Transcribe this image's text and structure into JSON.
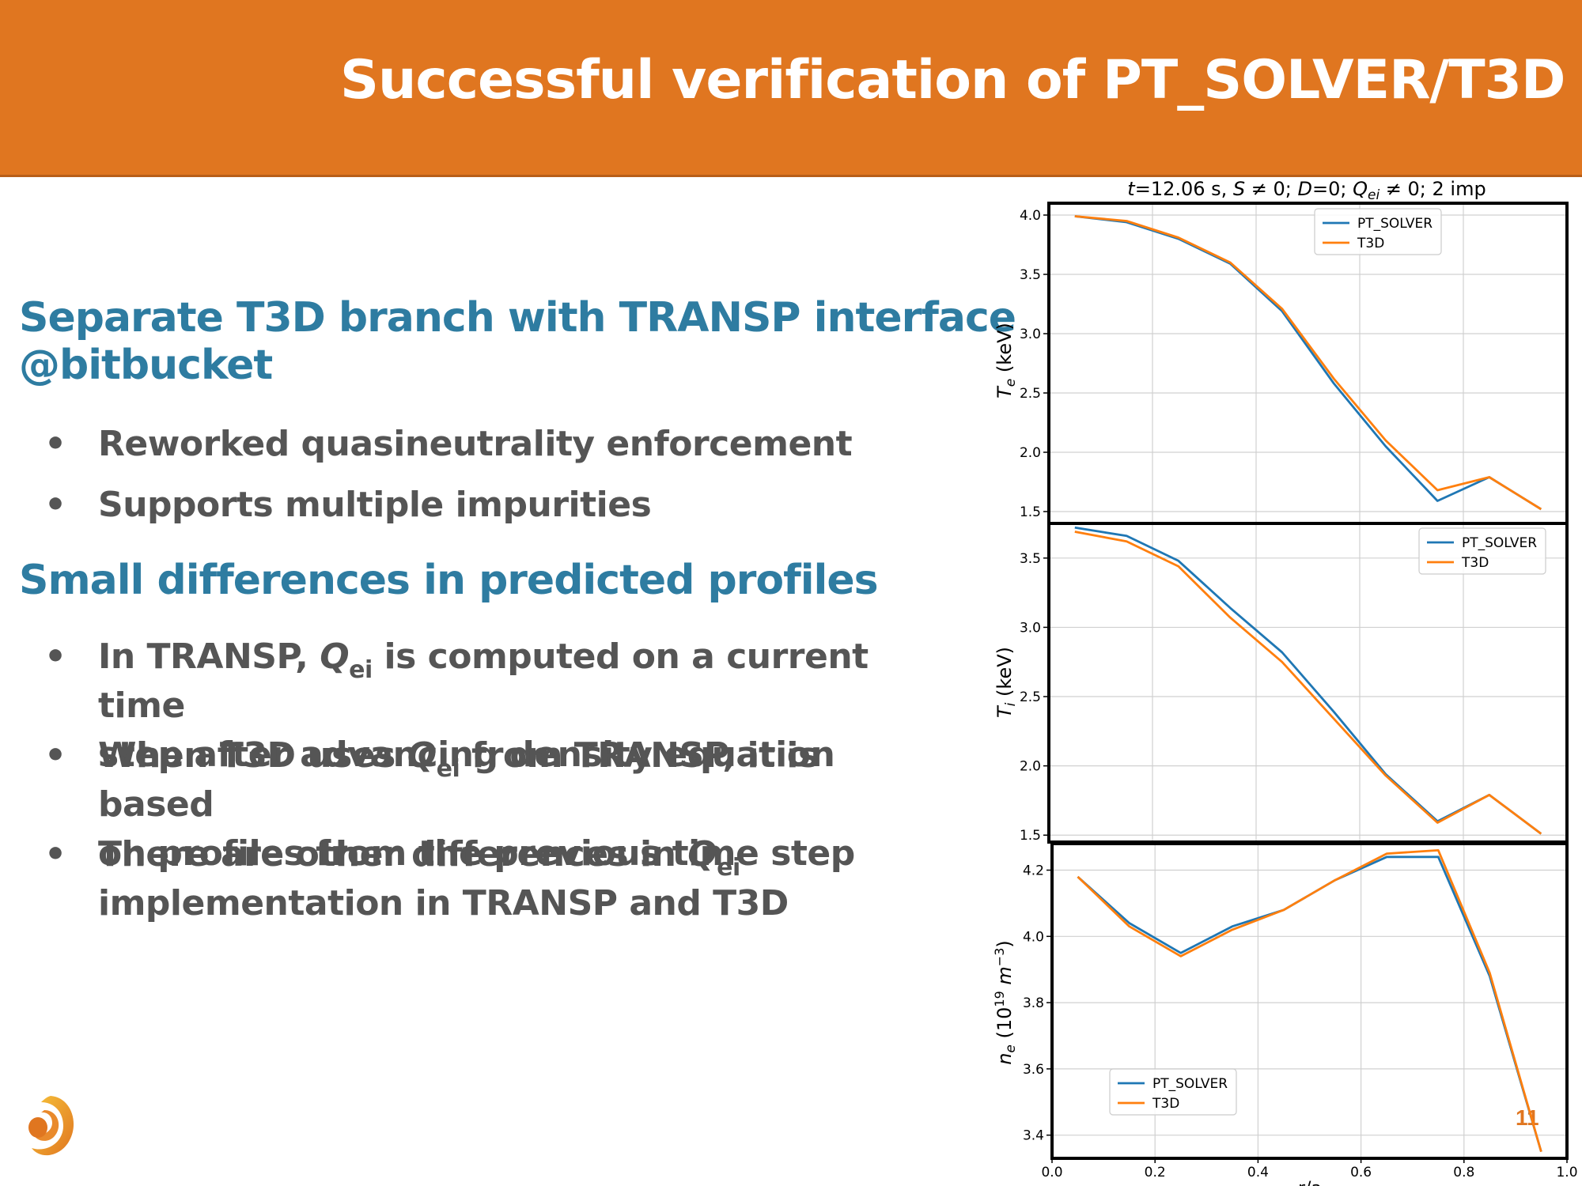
{
  "header": {
    "title": "Successful verification of PT_SOLVER/T3D"
  },
  "sections": [
    {
      "heading_line1": "Separate T3D branch with TRANSP interface",
      "heading_line2": "@bitbucket",
      "bullets": [
        "Reworked quasineutrality enforcement",
        "Supports multiple impurities"
      ]
    },
    {
      "heading_line1": "Small differences in predicted profiles",
      "bullets_rich": [
        {
          "l1_pre": "In TRANSP, ",
          "q": "Q",
          "sub": "ei",
          "l1_post": " is computed on a current time",
          "l2": "step after advancing density equation"
        },
        {
          "l1_pre": "When T3D uses ",
          "q": "Q",
          "sub": "ei",
          "l1_post": " from TRANSP, it is based",
          "l2": "on profiles from the previous time step"
        },
        {
          "l1_pre": "There are other differences in ",
          "q": "Q",
          "sub": "ei",
          "l1_post": "",
          "l2": "implementation in TRANSP and T3D"
        }
      ]
    }
  ],
  "bullet_char": "•",
  "page_number": "11",
  "colors": {
    "header": "#E07620",
    "heading": "#2E7CA1",
    "body_text": "#555555",
    "pt_solver": "#1F77B4",
    "t3d": "#FF7F0E"
  },
  "chart_data": [
    {
      "type": "line",
      "title": "t=12.06 s, S ≠ 0; D=0; Qei ≠ 0; 2 imp",
      "ylabel": "Te (keV)",
      "xlim": [
        0.0,
        1.0
      ],
      "ylim": [
        1.4,
        4.1
      ],
      "yticks": [
        "1.5",
        "2.0",
        "2.5",
        "3.0",
        "3.5",
        "4.0"
      ],
      "legend": "top-center",
      "grid": true,
      "x": [
        0.05,
        0.15,
        0.25,
        0.35,
        0.45,
        0.55,
        0.65,
        0.75,
        0.85,
        0.95
      ],
      "series": [
        {
          "name": "PT_SOLVER",
          "values": [
            3.99,
            3.94,
            3.8,
            3.59,
            3.19,
            2.58,
            2.05,
            1.59,
            1.79,
            1.52
          ]
        },
        {
          "name": "T3D",
          "values": [
            3.99,
            3.95,
            3.81,
            3.6,
            3.21,
            2.62,
            2.1,
            1.68,
            1.79,
            1.52
          ]
        }
      ]
    },
    {
      "type": "line",
      "title": "",
      "ylabel": "Ti (keV)",
      "xlim": [
        0.0,
        1.0
      ],
      "ylim": [
        1.45,
        3.75
      ],
      "yticks": [
        "1.5",
        "2.0",
        "2.5",
        "3.0",
        "3.5"
      ],
      "legend": "top-right",
      "grid": true,
      "x": [
        0.05,
        0.15,
        0.25,
        0.35,
        0.45,
        0.55,
        0.65,
        0.75,
        0.85,
        0.95
      ],
      "series": [
        {
          "name": "PT_SOLVER",
          "values": [
            3.72,
            3.66,
            3.48,
            3.14,
            2.82,
            2.39,
            1.94,
            1.6,
            1.79,
            1.51
          ]
        },
        {
          "name": "T3D",
          "values": [
            3.69,
            3.62,
            3.44,
            3.07,
            2.75,
            2.34,
            1.93,
            1.59,
            1.79,
            1.51
          ]
        }
      ]
    },
    {
      "type": "line",
      "title": "",
      "ylabel": "ne (10^19 m^-3)",
      "xlabel": "r/a",
      "xlim": [
        0.0,
        1.0
      ],
      "ylim": [
        3.33,
        4.28
      ],
      "xticks": [
        "0.0",
        "0.2",
        "0.4",
        "0.6",
        "0.8",
        "1.0"
      ],
      "yticks": [
        "3.4",
        "3.6",
        "3.8",
        "4.0",
        "4.2"
      ],
      "legend": "bottom-left",
      "grid": true,
      "x": [
        0.05,
        0.15,
        0.25,
        0.35,
        0.45,
        0.55,
        0.65,
        0.75,
        0.85,
        0.95
      ],
      "series": [
        {
          "name": "PT_SOLVER",
          "values": [
            4.18,
            4.04,
            3.95,
            4.03,
            4.08,
            4.17,
            4.24,
            4.24,
            3.88,
            3.35
          ]
        },
        {
          "name": "T3D",
          "values": [
            4.18,
            4.03,
            3.94,
            4.02,
            4.08,
            4.17,
            4.25,
            4.26,
            3.89,
            3.35
          ]
        }
      ]
    }
  ]
}
